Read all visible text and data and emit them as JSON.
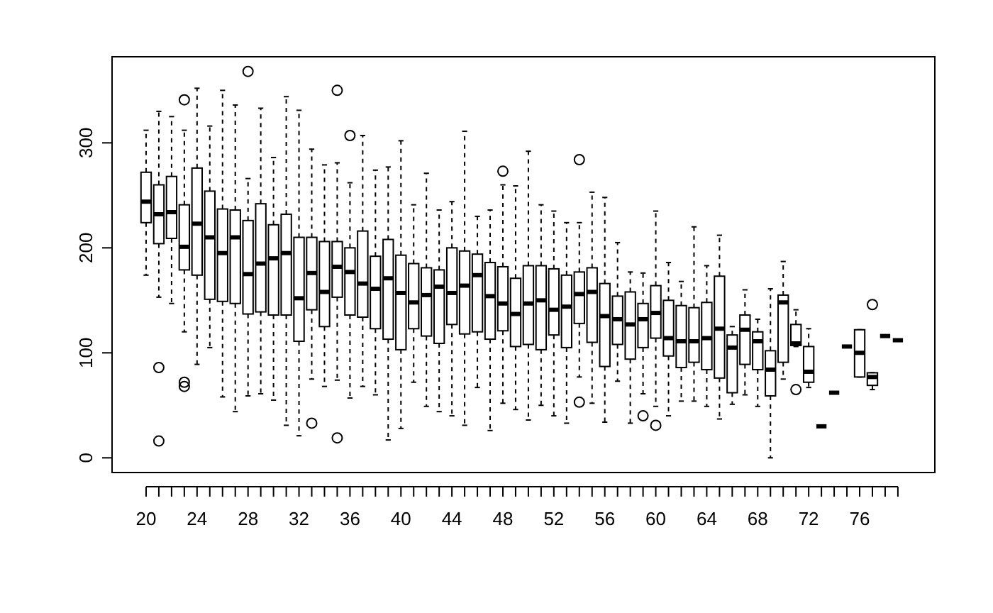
{
  "chart_data": {
    "type": "box",
    "categories": [
      "20",
      null,
      null,
      null,
      "24",
      null,
      null,
      null,
      "28",
      null,
      null,
      null,
      "32",
      null,
      null,
      null,
      "36",
      null,
      null,
      null,
      "40",
      null,
      null,
      null,
      "44",
      null,
      null,
      null,
      "48",
      null,
      null,
      null,
      "52",
      null,
      null,
      null,
      "56",
      null,
      null,
      null,
      "60",
      null,
      null,
      null,
      "64",
      null,
      null,
      null,
      "68",
      null,
      null,
      null,
      "72",
      null,
      null,
      null,
      "76",
      null,
      null,
      null
    ],
    "ylim": [
      -14,
      382
    ],
    "yticks": [
      0,
      100,
      200,
      300
    ],
    "boxes": [
      {
        "low": 174,
        "q1": 224,
        "median": 244,
        "q3": 272,
        "high": 312
      },
      {
        "low": 153,
        "q1": 204,
        "median": 232,
        "q3": 260,
        "high": 330,
        "outliers": [
          86,
          16
        ]
      },
      {
        "low": 147,
        "q1": 209,
        "median": 234,
        "q3": 268,
        "high": 325
      },
      {
        "low": 120,
        "q1": 179,
        "median": 201,
        "q3": 241,
        "high": 312,
        "outliers": [
          341,
          72,
          68
        ]
      },
      {
        "low": 89,
        "q1": 174,
        "median": 223,
        "q3": 276,
        "high": 352
      },
      {
        "low": 105,
        "q1": 151,
        "median": 210,
        "q3": 254,
        "high": 316
      },
      {
        "low": 58,
        "q1": 149,
        "median": 195,
        "q3": 237,
        "high": 350
      },
      {
        "low": 44,
        "q1": 147,
        "median": 210,
        "q3": 236,
        "high": 336
      },
      {
        "low": 59,
        "q1": 137,
        "median": 175,
        "q3": 226,
        "high": 266,
        "outliers": [
          368
        ]
      },
      {
        "low": 61,
        "q1": 139,
        "median": 185,
        "q3": 242,
        "high": 333
      },
      {
        "low": 55,
        "q1": 136,
        "median": 190,
        "q3": 222,
        "high": 286
      },
      {
        "low": 31,
        "q1": 136,
        "median": 195,
        "q3": 232,
        "high": 344
      },
      {
        "low": 21,
        "q1": 111,
        "median": 152,
        "q3": 210,
        "high": 331
      },
      {
        "low": 75,
        "q1": 141,
        "median": 176,
        "q3": 210,
        "high": 294,
        "outliers": [
          33
        ]
      },
      {
        "low": 68,
        "q1": 125,
        "median": 158,
        "q3": 206,
        "high": 279
      },
      {
        "low": 74,
        "q1": 153,
        "median": 182,
        "q3": 206,
        "high": 281,
        "outliers": [
          350,
          19
        ]
      },
      {
        "low": 57,
        "q1": 136,
        "median": 177,
        "q3": 200,
        "high": 262,
        "outliers": [
          307
        ]
      },
      {
        "low": 68,
        "q1": 134,
        "median": 166,
        "q3": 216,
        "high": 307
      },
      {
        "low": 60,
        "q1": 123,
        "median": 161,
        "q3": 192,
        "high": 274
      },
      {
        "low": 17,
        "q1": 113,
        "median": 171,
        "q3": 208,
        "high": 277
      },
      {
        "low": 28,
        "q1": 103,
        "median": 157,
        "q3": 193,
        "high": 302
      },
      {
        "low": 72,
        "q1": 123,
        "median": 148,
        "q3": 185,
        "high": 241
      },
      {
        "low": 49,
        "q1": 116,
        "median": 155,
        "q3": 181,
        "high": 271
      },
      {
        "low": 44,
        "q1": 109,
        "median": 163,
        "q3": 179,
        "high": 236
      },
      {
        "low": 40,
        "q1": 127,
        "median": 157,
        "q3": 200,
        "high": 244
      },
      {
        "low": 31,
        "q1": 118,
        "median": 164,
        "q3": 197,
        "high": 311
      },
      {
        "low": 67,
        "q1": 120,
        "median": 174,
        "q3": 194,
        "high": 230
      },
      {
        "low": 26,
        "q1": 113,
        "median": 154,
        "q3": 186,
        "high": 236
      },
      {
        "low": 52,
        "q1": 121,
        "median": 147,
        "q3": 182,
        "high": 260,
        "outliers": [
          273
        ]
      },
      {
        "low": 46,
        "q1": 106,
        "median": 137,
        "q3": 171,
        "high": 259
      },
      {
        "low": 36,
        "q1": 108,
        "median": 147,
        "q3": 183,
        "high": 292
      },
      {
        "low": 50,
        "q1": 103,
        "median": 150,
        "q3": 183,
        "high": 241
      },
      {
        "low": 40,
        "q1": 117,
        "median": 141,
        "q3": 180,
        "high": 235
      },
      {
        "low": 33,
        "q1": 105,
        "median": 144,
        "q3": 174,
        "high": 224
      },
      {
        "low": 77,
        "q1": 128,
        "median": 156,
        "q3": 177,
        "high": 224,
        "outliers": [
          284,
          53
        ]
      },
      {
        "low": 52,
        "q1": 110,
        "median": 158,
        "q3": 181,
        "high": 253
      },
      {
        "low": 34,
        "q1": 87,
        "median": 135,
        "q3": 166,
        "high": 248
      },
      {
        "low": 73,
        "q1": 108,
        "median": 132,
        "q3": 154,
        "high": 205
      },
      {
        "low": 33,
        "q1": 94,
        "median": 127,
        "q3": 158,
        "high": 177
      },
      {
        "low": 61,
        "q1": 105,
        "median": 132,
        "q3": 147,
        "high": 176,
        "outliers": [
          40
        ]
      },
      {
        "low": 49,
        "q1": 114,
        "median": 138,
        "q3": 164,
        "high": 235,
        "outliers": [
          31
        ]
      },
      {
        "low": 40,
        "q1": 97,
        "median": 114,
        "q3": 150,
        "high": 186
      },
      {
        "low": 54,
        "q1": 86,
        "median": 111,
        "q3": 145,
        "high": 168
      },
      {
        "low": 54,
        "q1": 91,
        "median": 111,
        "q3": 143,
        "high": 220
      },
      {
        "low": 49,
        "q1": 84,
        "median": 114,
        "q3": 148,
        "high": 183
      },
      {
        "low": 37,
        "q1": 76,
        "median": 123,
        "q3": 173,
        "high": 212
      },
      {
        "low": 51,
        "q1": 62,
        "median": 105,
        "q3": 117,
        "high": 125
      },
      {
        "low": 60,
        "q1": 89,
        "median": 122,
        "q3": 136,
        "high": 160
      },
      {
        "low": 49,
        "q1": 84,
        "median": 111,
        "q3": 120,
        "high": 132
      },
      {
        "low": 0,
        "q1": 59,
        "median": 84,
        "q3": 102,
        "high": 161
      },
      {
        "low": 75,
        "q1": 91,
        "median": 148,
        "q3": 155,
        "high": 187
      },
      {
        "low": 106,
        "q1": 107,
        "median": 109,
        "q3": 127,
        "high": 141,
        "outliers": [
          65
        ]
      },
      {
        "low": 67,
        "q1": 72,
        "median": 82,
        "q3": 106,
        "high": 123
      },
      {
        "low": 30,
        "q1": 30,
        "median": 30,
        "q3": 30,
        "high": 30
      },
      {
        "low": 62,
        "q1": 62,
        "median": 62,
        "q3": 62,
        "high": 62
      },
      {
        "low": 106,
        "q1": 106,
        "median": 106,
        "q3": 106,
        "high": 106
      },
      {
        "low": 77,
        "q1": 77,
        "median": 100,
        "q3": 122,
        "high": 122
      },
      {
        "low": 65,
        "q1": 69,
        "median": 77,
        "q3": 81,
        "high": 81,
        "outliers": [
          146
        ]
      },
      {
        "low": 116,
        "q1": 116,
        "median": 116,
        "q3": 116,
        "high": 116
      },
      {
        "low": 112,
        "q1": 112,
        "median": 112,
        "q3": 112,
        "high": 112
      }
    ]
  }
}
